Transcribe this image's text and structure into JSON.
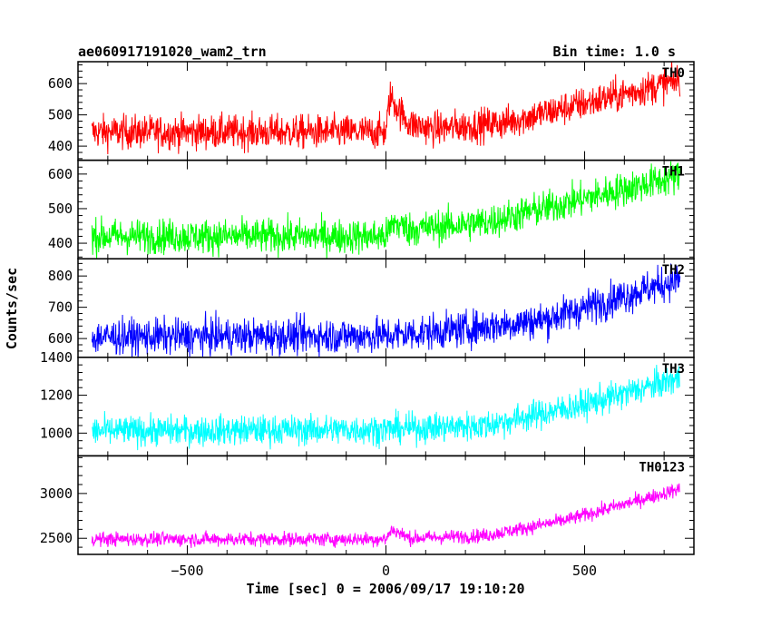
{
  "chart_data": {
    "type": "line",
    "title": "ae060917191020_wam2_trn",
    "bin_time_label": "Bin time: 1.0 s",
    "xlabel": "Time [sec] 0 = 2006/09/17 19:10:20",
    "ylabel": "Counts/sec",
    "xlim": [
      -775,
      775
    ],
    "x_ticks": [
      -500,
      0,
      500
    ],
    "x_tick_labels": [
      "−500",
      "0",
      "500"
    ],
    "x_range_data": [
      -740,
      740
    ],
    "panels": [
      {
        "name": "TH0",
        "color": "#ff0000",
        "ylim": [
          355,
          670
        ],
        "y_ticks": [
          400,
          500,
          600
        ],
        "y_tick_labels": [
          "400",
          "500",
          "600"
        ],
        "series_trend": [
          [
            -740,
            445
          ],
          [
            0,
            445
          ],
          [
            10,
            560
          ],
          [
            30,
            520
          ],
          [
            60,
            470
          ],
          [
            120,
            455
          ],
          [
            300,
            475
          ],
          [
            740,
            610
          ]
        ],
        "noise": 38
      },
      {
        "name": "TH1",
        "color": "#00ff00",
        "ylim": [
          355,
          640
        ],
        "y_ticks": [
          400,
          500,
          600
        ],
        "y_tick_labels": [
          "400",
          "500",
          "600"
        ],
        "series_trend": [
          [
            -740,
            420
          ],
          [
            0,
            420
          ],
          [
            20,
            460
          ],
          [
            60,
            440
          ],
          [
            250,
            460
          ],
          [
            740,
            595
          ]
        ],
        "noise": 35
      },
      {
        "name": "TH2",
        "color": "#0000ff",
        "ylim": [
          540,
          855
        ],
        "y_ticks": [
          600,
          700,
          800
        ],
        "y_tick_labels": [
          "600",
          "700",
          "800"
        ],
        "series_trend": [
          [
            -740,
            605
          ],
          [
            0,
            610
          ],
          [
            200,
            630
          ],
          [
            400,
            660
          ],
          [
            740,
            790
          ]
        ],
        "noise": 40
      },
      {
        "name": "TH3",
        "color": "#00ffff",
        "ylim": [
          880,
          1400
        ],
        "y_ticks": [
          1000,
          1200,
          1400
        ],
        "y_tick_labels": [
          "1000",
          "1200",
          "1400"
        ],
        "series_trend": [
          [
            -740,
            1010
          ],
          [
            0,
            1020
          ],
          [
            250,
            1040
          ],
          [
            500,
            1150
          ],
          [
            740,
            1290
          ]
        ],
        "noise": 55
      },
      {
        "name": "TH0123",
        "color": "#ff00ff",
        "ylim": [
          2320,
          3420
        ],
        "y_ticks": [
          2500,
          3000
        ],
        "y_tick_labels": [
          "2500",
          "3000"
        ],
        "series_trend": [
          [
            -740,
            2490
          ],
          [
            0,
            2490
          ],
          [
            15,
            2600
          ],
          [
            60,
            2500
          ],
          [
            250,
            2530
          ],
          [
            450,
            2700
          ],
          [
            740,
            3050
          ]
        ],
        "noise": 55
      }
    ],
    "grid": false,
    "legend": "none"
  }
}
